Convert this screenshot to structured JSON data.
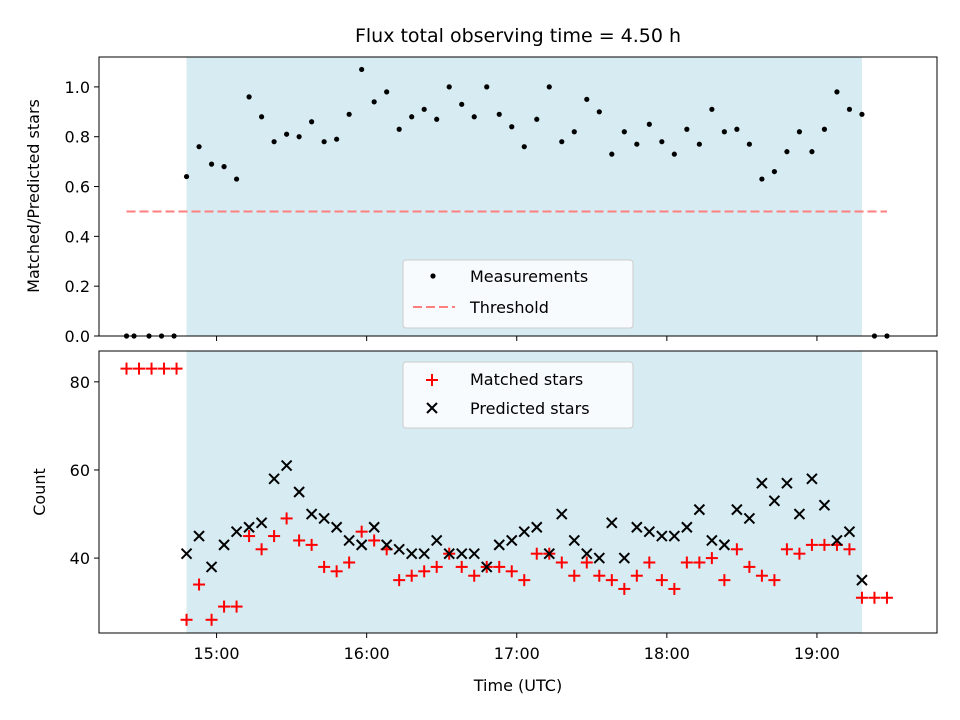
{
  "chart_data": {
    "title": "Flux total observing time = 4.50 h",
    "xlabel": "Time (UTC)",
    "x_ticks": [
      "15:00",
      "16:00",
      "17:00",
      "18:00",
      "19:00"
    ],
    "x_tick_values": [
      15.0,
      16.0,
      17.0,
      18.0,
      19.0
    ],
    "xlim": [
      "14:13",
      "19:48"
    ],
    "observing_window": [
      "14:48",
      "19:18"
    ],
    "colors": {
      "window": "#add8e6",
      "measurements": "#000000",
      "threshold": "#ff7f7f",
      "matched": "#ff0000",
      "predicted": "#000000"
    },
    "panels": [
      {
        "type": "scatter",
        "ylabel": "Matched/Predicted stars",
        "ylim": [
          0,
          1.12
        ],
        "y_ticks": [
          "0.0",
          "0.2",
          "0.4",
          "0.6",
          "0.8",
          "1.0"
        ],
        "y_tick_values": [
          0.0,
          0.2,
          0.4,
          0.6,
          0.8,
          1.0
        ],
        "legend_placement": "lower-center",
        "threshold": {
          "name": "Threshold",
          "value": 0.5,
          "x_range": [
            "14:24",
            "19:28"
          ]
        },
        "series": [
          {
            "name": "Measurements",
            "marker": "dot",
            "x": [
              "14:24",
              "14:27",
              "14:33",
              "14:38",
              "14:43",
              "14:48",
              "14:53",
              "14:58",
              "15:03",
              "15:08",
              "15:13",
              "15:18",
              "15:23",
              "15:28",
              "15:33",
              "15:38",
              "15:43",
              "15:48",
              "15:53",
              "15:58",
              "16:03",
              "16:08",
              "16:13",
              "16:18",
              "16:23",
              "16:28",
              "16:33",
              "16:38",
              "16:43",
              "16:48",
              "16:53",
              "16:58",
              "17:03",
              "17:08",
              "17:13",
              "17:18",
              "17:23",
              "17:28",
              "17:33",
              "17:38",
              "17:43",
              "17:48",
              "17:53",
              "17:58",
              "18:03",
              "18:08",
              "18:13",
              "18:18",
              "18:23",
              "18:28",
              "18:33",
              "18:38",
              "18:43",
              "18:48",
              "18:53",
              "18:58",
              "19:03",
              "19:08",
              "19:13",
              "19:18",
              "19:23",
              "19:28"
            ],
            "y": [
              0,
              0,
              0,
              0,
              0,
              0.64,
              0.76,
              0.69,
              0.68,
              0.63,
              0.96,
              0.88,
              0.78,
              0.81,
              0.8,
              0.86,
              0.78,
              0.79,
              0.89,
              1.07,
              0.94,
              0.98,
              0.83,
              0.88,
              0.91,
              0.87,
              1.0,
              0.93,
              0.88,
              1.0,
              0.89,
              0.84,
              0.76,
              0.87,
              1.0,
              0.78,
              0.82,
              0.95,
              0.9,
              0.73,
              0.82,
              0.77,
              0.85,
              0.78,
              0.73,
              0.83,
              0.77,
              0.91,
              0.82,
              0.83,
              0.77,
              0.63,
              0.66,
              0.74,
              0.82,
              0.74,
              0.83,
              0.98,
              0.91,
              0.89,
              0,
              0
            ]
          }
        ]
      },
      {
        "type": "scatter",
        "ylabel": "Count",
        "ylim": [
          23,
          87
        ],
        "y_ticks": [
          "40",
          "60",
          "80"
        ],
        "y_tick_values": [
          40,
          60,
          80
        ],
        "legend_placement": "upper-center",
        "series": [
          {
            "name": "Matched stars",
            "marker": "plus",
            "x": [
              "14:24",
              "14:29",
              "14:34",
              "14:39",
              "14:44",
              "14:48",
              "14:53",
              "14:58",
              "15:03",
              "15:08",
              "15:13",
              "15:18",
              "15:23",
              "15:28",
              "15:33",
              "15:38",
              "15:43",
              "15:48",
              "15:53",
              "15:58",
              "16:03",
              "16:08",
              "16:13",
              "16:18",
              "16:23",
              "16:28",
              "16:33",
              "16:38",
              "16:43",
              "16:48",
              "16:53",
              "16:58",
              "17:03",
              "17:08",
              "17:13",
              "17:18",
              "17:23",
              "17:28",
              "17:33",
              "17:38",
              "17:43",
              "17:48",
              "17:53",
              "17:58",
              "18:03",
              "18:08",
              "18:13",
              "18:18",
              "18:23",
              "18:28",
              "18:33",
              "18:38",
              "18:43",
              "18:48",
              "18:53",
              "18:58",
              "19:03",
              "19:08",
              "19:13",
              "19:18",
              "19:23",
              "19:28"
            ],
            "y": [
              83,
              83,
              83,
              83,
              83,
              26,
              34,
              26,
              29,
              29,
              45,
              42,
              45,
              49,
              44,
              43,
              38,
              37,
              39,
              46,
              44,
              42,
              35,
              36,
              37,
              38,
              41,
              38,
              36,
              38,
              38,
              37,
              35,
              41,
              41,
              39,
              36,
              39,
              36,
              35,
              33,
              36,
              39,
              35,
              33,
              39,
              39,
              40,
              35,
              42,
              38,
              36,
              35,
              42,
              41,
              43,
              43,
              43,
              42,
              31,
              31,
              31
            ]
          },
          {
            "name": "Predicted stars",
            "marker": "x",
            "x": [
              "14:48",
              "14:53",
              "14:58",
              "15:03",
              "15:08",
              "15:13",
              "15:18",
              "15:23",
              "15:28",
              "15:33",
              "15:38",
              "15:43",
              "15:48",
              "15:53",
              "15:58",
              "16:03",
              "16:08",
              "16:13",
              "16:18",
              "16:23",
              "16:28",
              "16:33",
              "16:38",
              "16:43",
              "16:48",
              "16:53",
              "16:58",
              "17:03",
              "17:08",
              "17:13",
              "17:18",
              "17:23",
              "17:28",
              "17:33",
              "17:38",
              "17:43",
              "17:48",
              "17:53",
              "17:58",
              "18:03",
              "18:08",
              "18:13",
              "18:18",
              "18:23",
              "18:28",
              "18:33",
              "18:38",
              "18:43",
              "18:48",
              "18:53",
              "18:58",
              "19:03",
              "19:08",
              "19:13",
              "19:18"
            ],
            "y": [
              41,
              45,
              38,
              43,
              46,
              47,
              48,
              58,
              61,
              55,
              50,
              49,
              47,
              44,
              43,
              47,
              43,
              42,
              41,
              41,
              44,
              41,
              41,
              41,
              38,
              43,
              44,
              46,
              47,
              41,
              50,
              44,
              41,
              40,
              48,
              40,
              47,
              46,
              45,
              45,
              47,
              51,
              44,
              43,
              51,
              49,
              57,
              53,
              57,
              50,
              58,
              52,
              44,
              46,
              35
            ]
          }
        ]
      }
    ]
  }
}
